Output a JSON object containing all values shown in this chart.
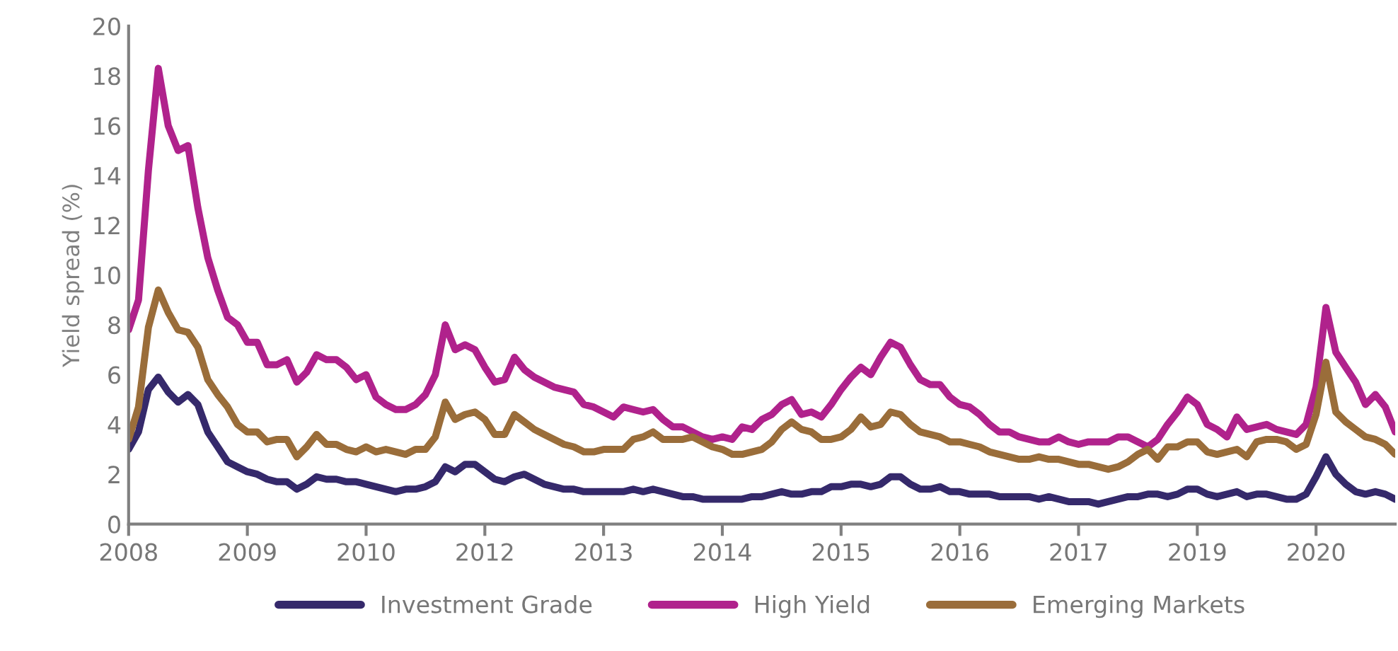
{
  "chart_data": {
    "type": "line",
    "ylabel": "Yield spread (%)",
    "ylim": [
      0,
      20
    ],
    "yticks": [
      0,
      2,
      4,
      6,
      8,
      10,
      12,
      14,
      16,
      18,
      20
    ],
    "categories": [
      "2008",
      null,
      null,
      null,
      null,
      null,
      null,
      null,
      null,
      null,
      null,
      null,
      "2009",
      null,
      null,
      null,
      null,
      null,
      null,
      null,
      null,
      null,
      null,
      null,
      "2010",
      null,
      null,
      null,
      null,
      null,
      null,
      null,
      null,
      null,
      null,
      null,
      "2012",
      null,
      null,
      null,
      null,
      null,
      null,
      null,
      null,
      null,
      null,
      null,
      "2013",
      null,
      null,
      null,
      null,
      null,
      null,
      null,
      null,
      null,
      null,
      null,
      "2014",
      null,
      null,
      null,
      null,
      null,
      null,
      null,
      null,
      null,
      null,
      null,
      "2015",
      null,
      null,
      null,
      null,
      null,
      null,
      null,
      null,
      null,
      null,
      null,
      "2016",
      null,
      null,
      null,
      null,
      null,
      null,
      null,
      null,
      null,
      null,
      null,
      "2017",
      null,
      null,
      null,
      null,
      null,
      null,
      null,
      null,
      null,
      null,
      null,
      "2019",
      null,
      null,
      null,
      null,
      null,
      null,
      null,
      null,
      null,
      null,
      null,
      "2020",
      null,
      null,
      null,
      null,
      null,
      null,
      null,
      null
    ],
    "grid": false,
    "legend": "bottom",
    "marker": "none",
    "line_style": "solid",
    "series": [
      {
        "name": "Investment Grade",
        "color": "#35296b",
        "values": [
          3.0,
          3.7,
          5.4,
          5.9,
          5.3,
          4.9,
          5.2,
          4.8,
          3.7,
          3.1,
          2.5,
          2.3,
          2.1,
          2.0,
          1.8,
          1.7,
          1.7,
          1.4,
          1.6,
          1.9,
          1.8,
          1.8,
          1.7,
          1.7,
          1.6,
          1.5,
          1.4,
          1.3,
          1.4,
          1.4,
          1.5,
          1.7,
          2.3,
          2.1,
          2.4,
          2.4,
          2.1,
          1.8,
          1.7,
          1.9,
          2.0,
          1.8,
          1.6,
          1.5,
          1.4,
          1.4,
          1.3,
          1.3,
          1.3,
          1.3,
          1.3,
          1.4,
          1.3,
          1.4,
          1.3,
          1.2,
          1.1,
          1.1,
          1.0,
          1.0,
          1.0,
          1.0,
          1.0,
          1.1,
          1.1,
          1.2,
          1.3,
          1.2,
          1.2,
          1.3,
          1.3,
          1.5,
          1.5,
          1.6,
          1.6,
          1.5,
          1.6,
          1.9,
          1.9,
          1.6,
          1.4,
          1.4,
          1.5,
          1.3,
          1.3,
          1.2,
          1.2,
          1.2,
          1.1,
          1.1,
          1.1,
          1.1,
          1.0,
          1.1,
          1.0,
          0.9,
          0.9,
          0.9,
          0.8,
          0.9,
          1.0,
          1.1,
          1.1,
          1.2,
          1.2,
          1.1,
          1.2,
          1.4,
          1.4,
          1.2,
          1.1,
          1.2,
          1.3,
          1.1,
          1.2,
          1.2,
          1.1,
          1.0,
          1.0,
          1.2,
          1.9,
          2.7,
          2.0,
          1.6,
          1.3,
          1.2,
          1.3,
          1.2,
          1.0
        ]
      },
      {
        "name": "High Yield",
        "color": "#b0228c",
        "values": [
          7.8,
          9.0,
          14.2,
          18.3,
          16.0,
          15.0,
          15.2,
          12.7,
          10.7,
          9.4,
          8.3,
          8.0,
          7.3,
          7.3,
          6.4,
          6.4,
          6.6,
          5.7,
          6.1,
          6.8,
          6.6,
          6.6,
          6.3,
          5.8,
          6.0,
          5.1,
          4.8,
          4.6,
          4.6,
          4.8,
          5.2,
          6.0,
          8.0,
          7.0,
          7.2,
          7.0,
          6.3,
          5.7,
          5.8,
          6.7,
          6.2,
          5.9,
          5.7,
          5.5,
          5.4,
          5.3,
          4.8,
          4.7,
          4.5,
          4.3,
          4.7,
          4.6,
          4.5,
          4.6,
          4.2,
          3.9,
          3.9,
          3.7,
          3.5,
          3.4,
          3.5,
          3.4,
          3.9,
          3.8,
          4.2,
          4.4,
          4.8,
          5.0,
          4.4,
          4.5,
          4.3,
          4.8,
          5.4,
          5.9,
          6.3,
          6.0,
          6.7,
          7.3,
          7.1,
          6.4,
          5.8,
          5.6,
          5.6,
          5.1,
          4.8,
          4.7,
          4.4,
          4.0,
          3.7,
          3.7,
          3.5,
          3.4,
          3.3,
          3.3,
          3.5,
          3.3,
          3.2,
          3.3,
          3.3,
          3.3,
          3.5,
          3.5,
          3.3,
          3.1,
          3.4,
          4.0,
          4.5,
          5.1,
          4.8,
          4.0,
          3.8,
          3.5,
          4.3,
          3.8,
          3.9,
          4.0,
          3.8,
          3.7,
          3.6,
          4.0,
          5.5,
          8.7,
          6.9,
          6.3,
          5.7,
          4.8,
          5.2,
          4.7,
          3.7
        ]
      },
      {
        "name": "Emerging Markets",
        "color": "#9a6d3a",
        "values": [
          3.4,
          4.7,
          7.9,
          9.4,
          8.5,
          7.8,
          7.7,
          7.1,
          5.8,
          5.2,
          4.7,
          4.0,
          3.7,
          3.7,
          3.3,
          3.4,
          3.4,
          2.7,
          3.1,
          3.6,
          3.2,
          3.2,
          3.0,
          2.9,
          3.1,
          2.9,
          3.0,
          2.9,
          2.8,
          3.0,
          3.0,
          3.5,
          4.9,
          4.2,
          4.4,
          4.5,
          4.2,
          3.6,
          3.6,
          4.4,
          4.1,
          3.8,
          3.6,
          3.4,
          3.2,
          3.1,
          2.9,
          2.9,
          3.0,
          3.0,
          3.0,
          3.4,
          3.5,
          3.7,
          3.4,
          3.4,
          3.4,
          3.5,
          3.3,
          3.1,
          3.0,
          2.8,
          2.8,
          2.9,
          3.0,
          3.3,
          3.8,
          4.1,
          3.8,
          3.7,
          3.4,
          3.4,
          3.5,
          3.8,
          4.3,
          3.9,
          4.0,
          4.5,
          4.4,
          4.0,
          3.7,
          3.6,
          3.5,
          3.3,
          3.3,
          3.2,
          3.1,
          2.9,
          2.8,
          2.7,
          2.6,
          2.6,
          2.7,
          2.6,
          2.6,
          2.5,
          2.4,
          2.4,
          2.3,
          2.2,
          2.3,
          2.5,
          2.8,
          3.0,
          2.6,
          3.1,
          3.1,
          3.3,
          3.3,
          2.9,
          2.8,
          2.9,
          3.0,
          2.7,
          3.3,
          3.4,
          3.4,
          3.3,
          3.0,
          3.2,
          4.4,
          6.5,
          4.5,
          4.1,
          3.8,
          3.5,
          3.4,
          3.2,
          2.8
        ]
      }
    ]
  }
}
